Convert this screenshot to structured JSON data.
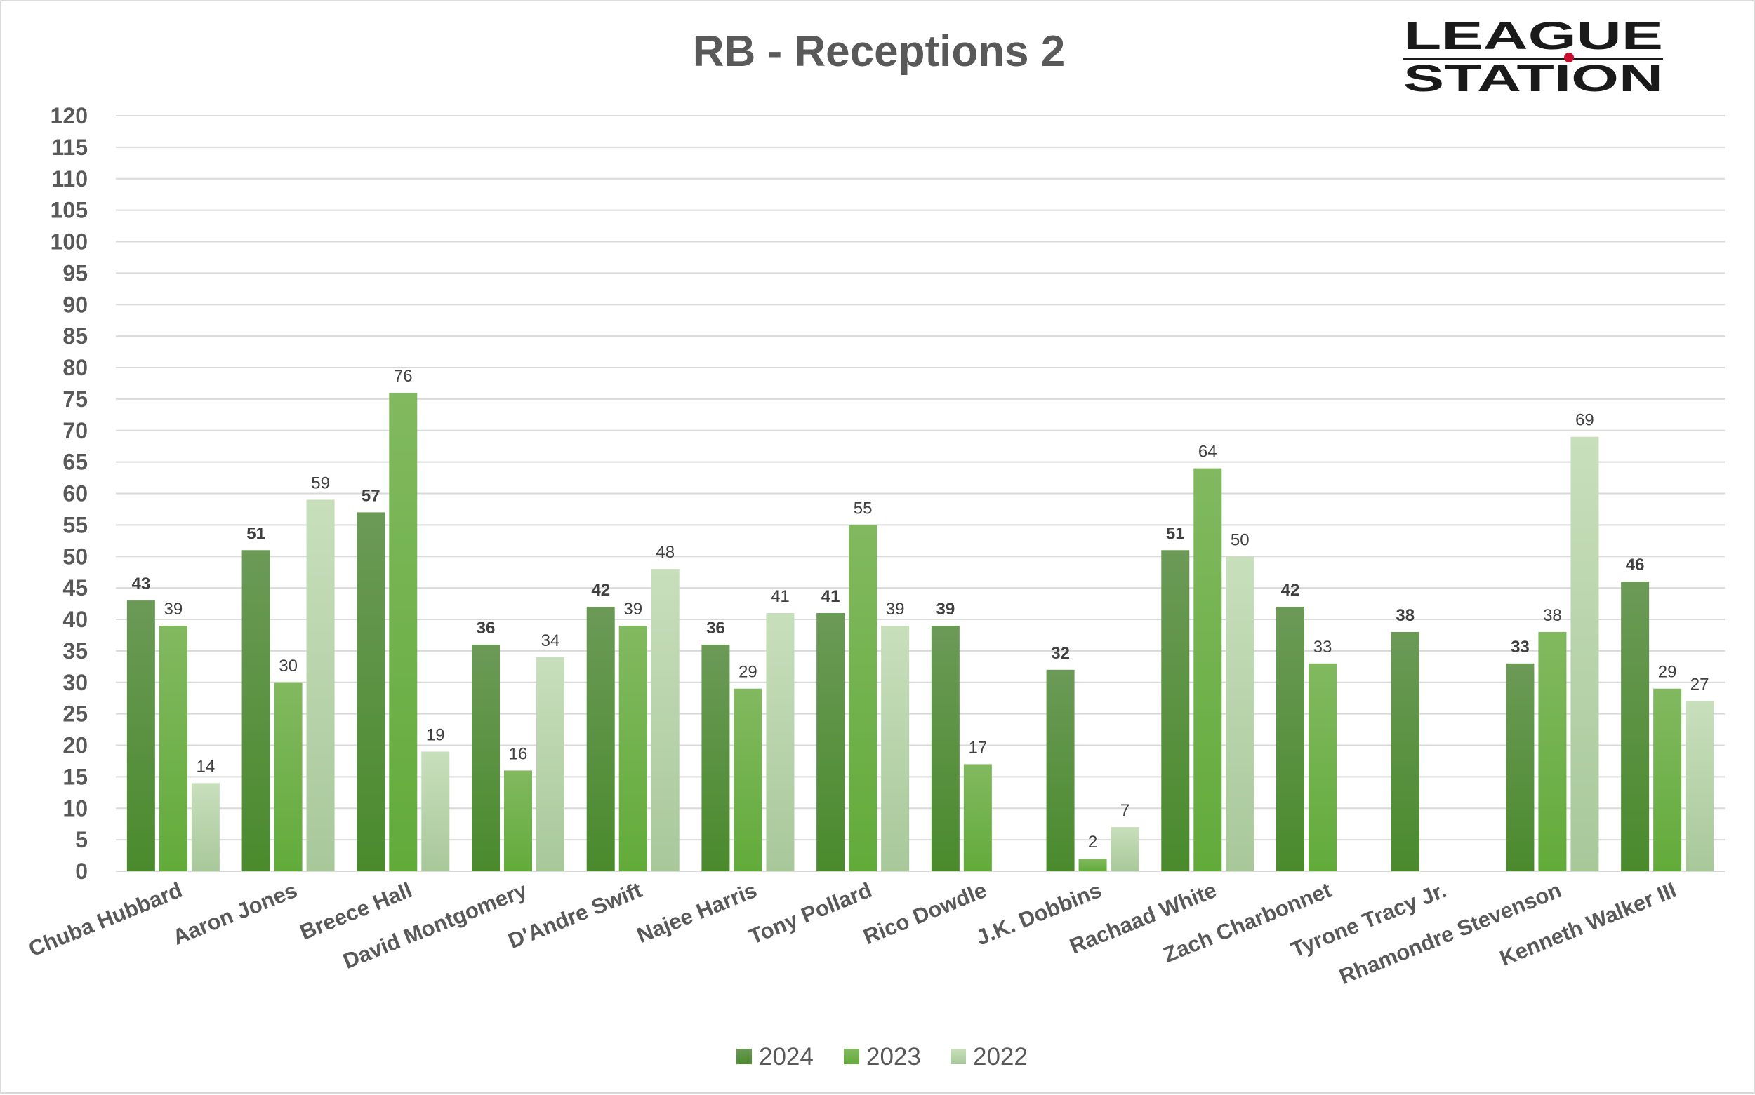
{
  "chart_data": {
    "type": "bar",
    "title": "RB - Receptions 2",
    "categories": [
      "Chuba Hubbard",
      "Aaron Jones",
      "Breece Hall",
      "David Montgomery",
      "D'Andre Swift",
      "Najee Harris",
      "Tony Pollard",
      "Rico Dowdle",
      "J.K. Dobbins",
      "Rachaad White",
      "Zach Charbonnet",
      "Tyrone Tracy Jr.",
      "Rhamondre Stevenson",
      "Kenneth Walker III"
    ],
    "series": [
      {
        "name": "2024",
        "values": [
          43,
          51,
          57,
          36,
          42,
          36,
          41,
          39,
          32,
          51,
          42,
          38,
          33,
          46
        ]
      },
      {
        "name": "2023",
        "values": [
          39,
          30,
          76,
          16,
          39,
          29,
          55,
          17,
          2,
          64,
          33,
          null,
          38,
          29
        ]
      },
      {
        "name": "2022",
        "values": [
          14,
          59,
          19,
          34,
          48,
          41,
          39,
          null,
          7,
          50,
          null,
          null,
          69,
          27
        ]
      }
    ],
    "ylim": [
      0,
      120
    ],
    "ytick_step": 5,
    "grid": true,
    "legend_position": "bottom",
    "xlabel": "",
    "ylabel": ""
  },
  "colors": {
    "s2024_top": "#6b9a57",
    "s2024_bottom": "#4a8a2c",
    "s2023_top": "#82b960",
    "s2023_bottom": "#62ab3a",
    "s2022_top": "#c8dfbc",
    "s2022_bottom": "#a8c89a",
    "grid": "#d9d9d9",
    "text": "#595959",
    "logo_dot": "#c8102e"
  },
  "logo": {
    "line1": "LEAGUE",
    "line2": "STATION"
  }
}
